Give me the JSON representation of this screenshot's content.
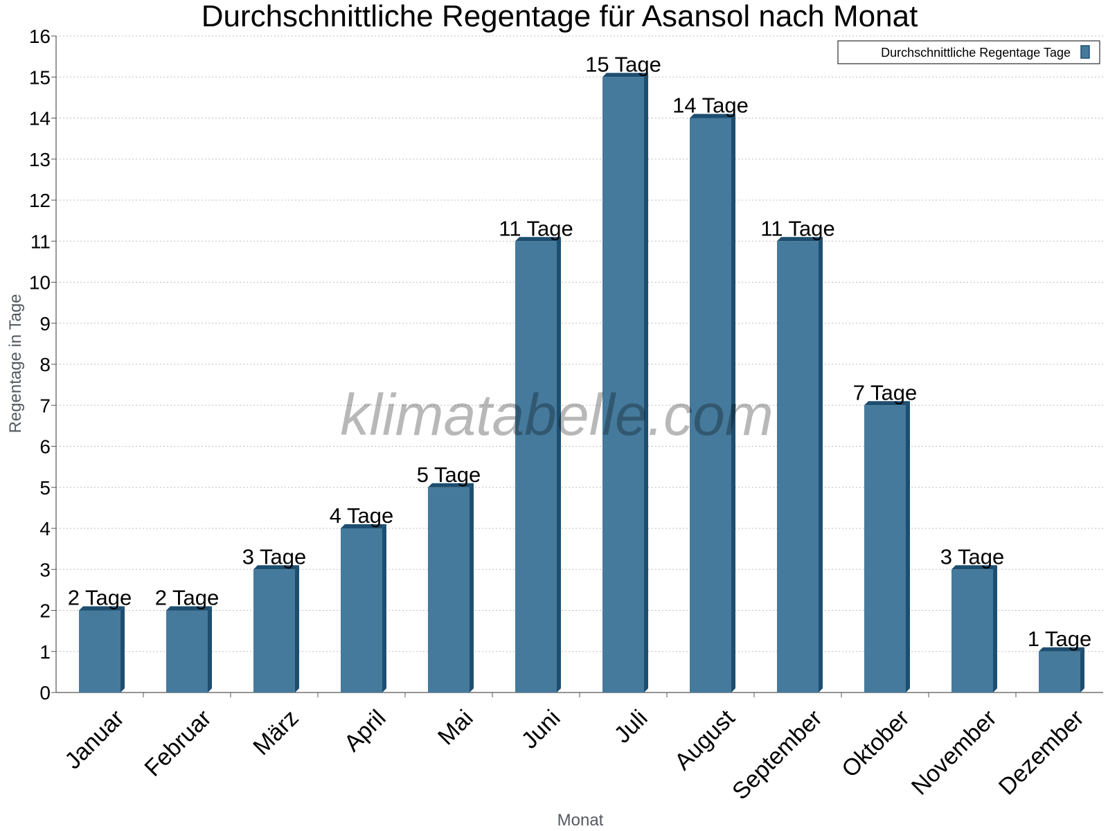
{
  "chart_data": {
    "type": "bar",
    "title": "Durchschnittliche Regentage für Asansol nach Monat",
    "xlabel": "Monat",
    "ylabel": "Regentage in Tage",
    "categories": [
      "Januar",
      "Februar",
      "März",
      "April",
      "Mai",
      "Juni",
      "Juli",
      "August",
      "September",
      "Oktober",
      "November",
      "Dezember"
    ],
    "series": [
      {
        "name": "Durchschnittliche Regentage Tage",
        "values": [
          2,
          2,
          3,
          4,
          5,
          11,
          15,
          14,
          11,
          7,
          3,
          1
        ],
        "data_labels": [
          "2 Tage",
          "2 Tage",
          "3 Tage",
          "4 Tage",
          "5 Tage",
          "11 Tage",
          "15 Tage",
          "14 Tage",
          "11 Tage",
          "7 Tage",
          "3 Tage",
          "1 Tage"
        ],
        "color": "#457a9c",
        "shade_color": "#1d4e70"
      }
    ],
    "ylim": [
      0,
      16
    ],
    "yticks": [
      0,
      1,
      2,
      3,
      4,
      5,
      6,
      7,
      8,
      9,
      10,
      11,
      12,
      13,
      14,
      15,
      16
    ],
    "grid": true,
    "legend_position": "top-right",
    "watermark": "klimatabelle.com"
  }
}
